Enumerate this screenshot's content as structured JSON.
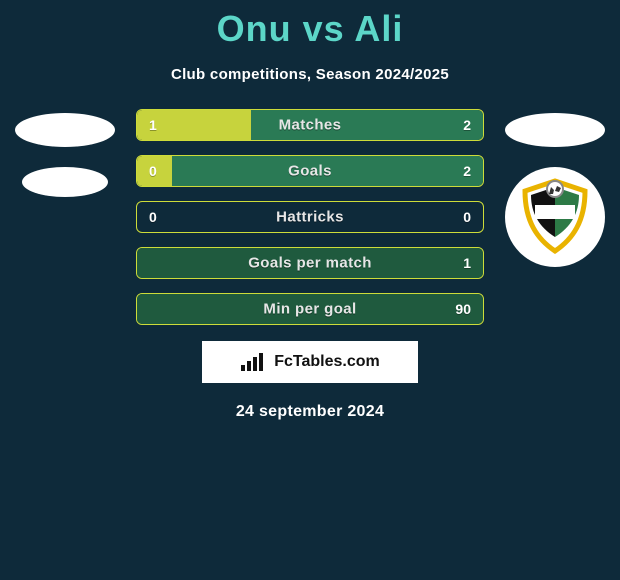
{
  "title": "Onu vs Ali",
  "subtitle": "Club competitions, Season 2024/2025",
  "date": "24 september 2024",
  "brand": {
    "text": "FcTables.com"
  },
  "colors": {
    "title": "#5cd6c8",
    "bg": "#0e2a3a",
    "row_border": "#cddc39",
    "row_fill_yellow": "#c7d33d",
    "row_fill_green": "#2a7a55",
    "row_fill_darkgreen": "#1f5a3e",
    "badge_ring": "#e9b300",
    "badge_green": "#2d7a46"
  },
  "stats": [
    {
      "label": "Matches",
      "left_val": "1",
      "right_val": "2",
      "left_pct": 33,
      "right_pct": 67,
      "left_color": "#c7d33d",
      "right_color": "#2a7a55"
    },
    {
      "label": "Goals",
      "left_val": "0",
      "right_val": "2",
      "left_pct": 10,
      "right_pct": 90,
      "left_color": "#c7d33d",
      "right_color": "#2a7a55"
    },
    {
      "label": "Hattricks",
      "left_val": "0",
      "right_val": "0",
      "left_pct": 0,
      "right_pct": 0,
      "left_color": "#c7d33d",
      "right_color": "#2a7a55"
    },
    {
      "label": "Goals per match",
      "left_val": "",
      "right_val": "1",
      "left_pct": 0,
      "right_pct": 100,
      "left_color": "#c7d33d",
      "right_color": "#1f5a3e"
    },
    {
      "label": "Min per goal",
      "left_val": "",
      "right_val": "90",
      "left_pct": 0,
      "right_pct": 100,
      "left_color": "#c7d33d",
      "right_color": "#1f5a3e"
    }
  ]
}
